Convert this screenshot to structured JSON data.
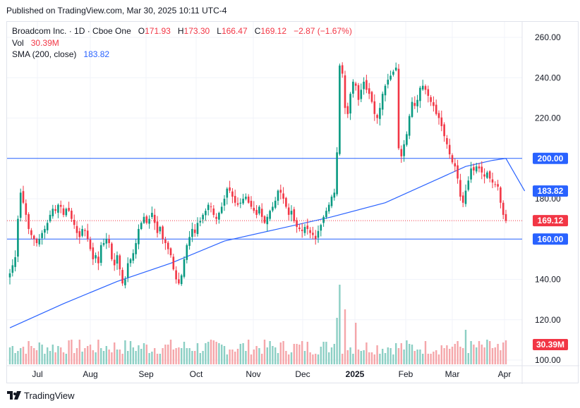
{
  "header": {
    "published": "Published on TradingView.com, Mar 30, 2025 10:11 UTC-4"
  },
  "legend": {
    "title": "Broadcom Inc. · 1D · Cboe One",
    "o_label": "O",
    "o_value": "171.93",
    "h_label": "H",
    "h_value": "173.30",
    "l_label": "L",
    "l_value": "166.47",
    "c_label": "C",
    "c_value": "169.12",
    "change": "−2.87 (−1.67%)",
    "vol_label": "Vol",
    "vol_value": "30.39M",
    "sma_label": "SMA (200, close)",
    "sma_value": "183.82"
  },
  "footer": {
    "brand": "TradingView"
  },
  "colors": {
    "up": "#089981",
    "down": "#f23645",
    "vol_up": "#8ccfc4",
    "vol_down": "#f5a6aa",
    "sma": "#2962ff",
    "hline": "#2962ff",
    "grid": "#f0f3fa",
    "text": "#131722"
  },
  "chart_data": {
    "type": "candlestick",
    "title": "Broadcom Inc. · 1D · Cboe One",
    "y_ticks": [
      100,
      120,
      140,
      160,
      180,
      200,
      220,
      240,
      260
    ],
    "x_ticks": [
      "Jul",
      "Aug",
      "Sep",
      "Oct",
      "Nov",
      "Dec",
      "2025",
      "Feb",
      "Mar",
      "Apr"
    ],
    "y_range": [
      98,
      265
    ],
    "horizontal_lines": [
      200.0,
      160.0
    ],
    "last_price": 169.12,
    "sma_last": 183.82,
    "volume_last": "30.39M",
    "price_labels": {
      "h200": "200.00",
      "h160": "160.00",
      "last": "169.12",
      "sma": "183.82",
      "vol": "30.39M"
    },
    "closes": [
      143,
      147,
      151,
      170,
      183,
      178,
      172,
      165,
      162,
      160,
      158,
      160,
      163,
      165,
      168,
      172,
      175,
      174,
      177,
      176,
      172,
      175,
      174,
      170,
      167,
      163,
      161,
      165,
      164,
      160,
      155,
      150,
      152,
      148,
      157,
      158,
      160,
      158,
      150,
      147,
      152,
      145,
      138,
      140,
      148,
      150,
      153,
      158,
      165,
      168,
      171,
      168,
      170,
      173,
      168,
      163,
      166,
      160,
      158,
      155,
      152,
      145,
      140,
      138,
      142,
      150,
      157,
      161,
      165,
      163,
      168,
      169,
      172,
      174,
      177,
      176,
      172,
      170,
      173,
      176,
      180,
      185,
      184,
      181,
      178,
      177,
      178,
      180,
      181,
      178,
      176,
      174,
      172,
      176,
      171,
      168,
      171,
      174,
      176,
      179,
      184,
      183,
      180,
      176,
      172,
      174,
      169,
      166,
      165,
      164,
      166,
      165,
      163,
      162,
      160,
      164,
      167,
      171,
      174,
      177,
      181,
      183,
      203,
      246,
      242,
      225,
      222,
      232,
      238,
      236,
      229,
      234,
      238,
      234,
      232,
      228,
      222,
      220,
      225,
      232,
      236,
      239,
      241,
      243,
      245,
      205,
      201,
      207,
      212,
      221,
      228,
      226,
      229,
      235,
      236,
      234,
      231,
      228,
      226,
      222,
      220,
      216,
      211,
      207,
      202,
      198,
      196,
      190,
      181,
      178,
      184,
      189,
      195,
      194,
      196,
      195,
      193,
      191,
      193,
      190,
      188,
      187,
      186,
      178,
      172,
      169.12
    ],
    "sma": [
      [
        0,
        116
      ],
      [
        20,
        128
      ],
      [
        40,
        139
      ],
      [
        60,
        148
      ],
      [
        80,
        159
      ],
      [
        100,
        165
      ],
      [
        120,
        171
      ],
      [
        140,
        178
      ],
      [
        160,
        190
      ],
      [
        170,
        196
      ],
      [
        180,
        199
      ],
      [
        185,
        200
      ],
      [
        192,
        183.82
      ]
    ],
    "vol_spikes": {
      "121": 29,
      "122": 66,
      "123": 113,
      "125": 78,
      "129": 59,
      "153": 21,
      "163": 27,
      "166": 29,
      "170": 49,
      "183": 20
    }
  }
}
